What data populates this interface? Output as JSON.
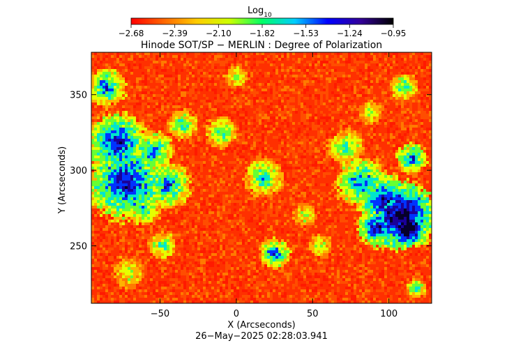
{
  "chart_data": {
    "type": "heatmap",
    "title": "Hinode SOT/SP − MERLIN : Degree of Polarization",
    "xlabel": "X (Arcseconds)",
    "ylabel": "Y (Arcseconds)",
    "timestamp": "26−May−2025 02:28:03.941",
    "colorbar": {
      "label_main": "Log",
      "label_sub": "10",
      "range": [
        -2.68,
        -0.95
      ],
      "ticks": [
        "−2.68",
        "−2.39",
        "−2.10",
        "−1.82",
        "−1.53",
        "−1.24",
        "−0.95"
      ],
      "colors": [
        "#ff0000",
        "#ff6600",
        "#ffcc00",
        "#ccff00",
        "#00ff66",
        "#00ccff",
        "#0000ff",
        "#330099",
        "#000000"
      ]
    },
    "xlim": [
      -95,
      128
    ],
    "ylim": [
      212,
      378
    ],
    "xticks": [
      {
        "value": -50,
        "label": "−50"
      },
      {
        "value": 0,
        "label": "0"
      },
      {
        "value": 50,
        "label": "50"
      },
      {
        "value": 100,
        "label": "100"
      }
    ],
    "yticks": [
      {
        "value": 250,
        "label": "250"
      },
      {
        "value": 300,
        "label": "300"
      },
      {
        "value": 350,
        "label": "350"
      }
    ],
    "palette": [
      "#ff1a00",
      "#ff4d00",
      "#ff7a00",
      "#ffb300",
      "#e6ff00",
      "#66ff33",
      "#00e6cc",
      "#0033ff",
      "#1a0099",
      "#05002a"
    ],
    "background_color": "#ff3000",
    "regions": [
      {
        "x": -85,
        "y": 355,
        "r": 10,
        "level": 6
      },
      {
        "x": -78,
        "y": 318,
        "r": 16,
        "level": 7
      },
      {
        "x": -72,
        "y": 292,
        "r": 20,
        "level": 7
      },
      {
        "x": -55,
        "y": 312,
        "r": 11,
        "level": 6
      },
      {
        "x": -45,
        "y": 290,
        "r": 12,
        "level": 6
      },
      {
        "x": -60,
        "y": 275,
        "r": 9,
        "level": 5
      },
      {
        "x": -48,
        "y": 250,
        "r": 7,
        "level": 5
      },
      {
        "x": -70,
        "y": 232,
        "r": 8,
        "level": 4
      },
      {
        "x": -35,
        "y": 330,
        "r": 8,
        "level": 5
      },
      {
        "x": -10,
        "y": 325,
        "r": 8,
        "level": 5
      },
      {
        "x": 0,
        "y": 362,
        "r": 6,
        "level": 4
      },
      {
        "x": 18,
        "y": 295,
        "r": 10,
        "level": 5
      },
      {
        "x": 25,
        "y": 245,
        "r": 8,
        "level": 6
      },
      {
        "x": 45,
        "y": 270,
        "r": 6,
        "level": 4
      },
      {
        "x": 55,
        "y": 250,
        "r": 6,
        "level": 4
      },
      {
        "x": 72,
        "y": 315,
        "r": 9,
        "level": 5
      },
      {
        "x": 82,
        "y": 292,
        "r": 13,
        "level": 6
      },
      {
        "x": 98,
        "y": 280,
        "r": 14,
        "level": 7
      },
      {
        "x": 108,
        "y": 270,
        "r": 18,
        "level": 8
      },
      {
        "x": 112,
        "y": 262,
        "r": 10,
        "level": 9
      },
      {
        "x": 92,
        "y": 262,
        "r": 10,
        "level": 7
      },
      {
        "x": 115,
        "y": 308,
        "r": 8,
        "level": 6
      },
      {
        "x": 110,
        "y": 355,
        "r": 7,
        "level": 5
      },
      {
        "x": 88,
        "y": 338,
        "r": 6,
        "level": 4
      },
      {
        "x": 118,
        "y": 222,
        "r": 5,
        "level": 5
      }
    ]
  }
}
